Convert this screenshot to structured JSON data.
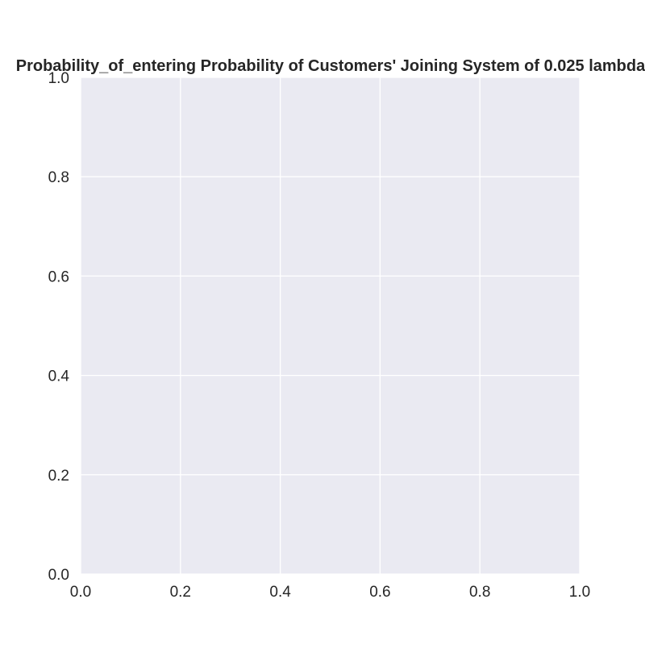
{
  "chart_data": {
    "type": "line",
    "title": "Probability_of_entering Probability of Customers' Joining System of 0.025 lambda",
    "xlabel": "",
    "ylabel": "",
    "xlim": [
      0.0,
      1.0
    ],
    "ylim": [
      0.0,
      1.0
    ],
    "x_ticks": [
      0.0,
      0.2,
      0.4,
      0.6,
      0.8,
      1.0
    ],
    "y_ticks": [
      0.0,
      0.2,
      0.4,
      0.6,
      0.8,
      1.0
    ],
    "x_tick_labels": [
      "0.0",
      "0.2",
      "0.4",
      "0.6",
      "0.8",
      "1.0"
    ],
    "y_tick_labels": [
      "0.0",
      "0.2",
      "0.4",
      "0.6",
      "0.8",
      "1.0"
    ],
    "series": [],
    "grid": true,
    "colors": {
      "plot_background": "#EAEAF2",
      "grid": "#FFFFFF",
      "text": "#262626"
    }
  }
}
